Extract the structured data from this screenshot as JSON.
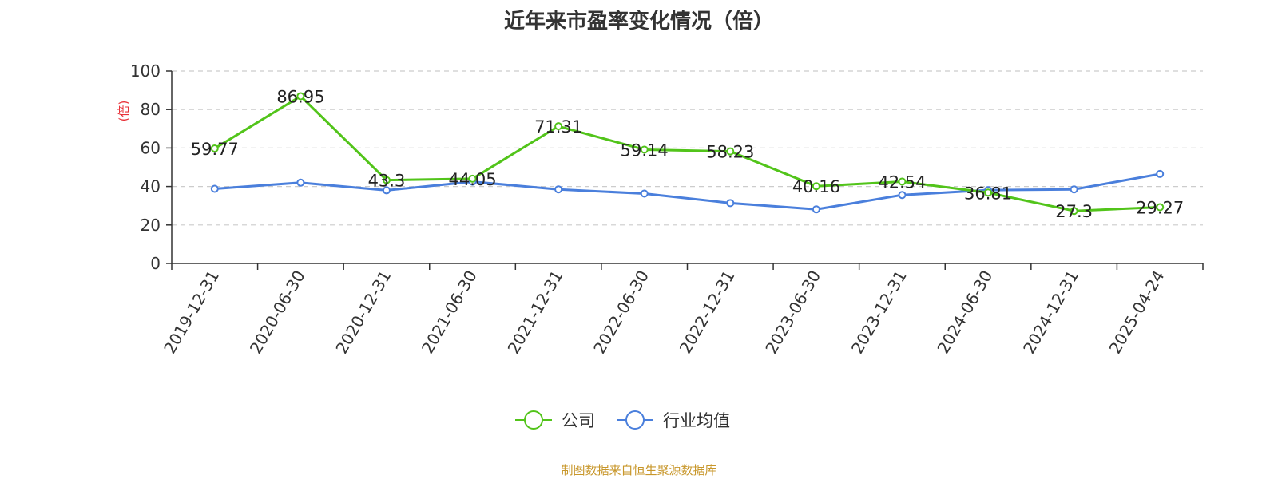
{
  "chart_data": {
    "type": "line",
    "title": "近年来市盈率变化情况（倍）",
    "ylabel": "(倍)",
    "xlabel": "",
    "ylim": [
      0,
      100
    ],
    "yticks": [
      0,
      20,
      40,
      60,
      80,
      100
    ],
    "grid": true,
    "legend_position": "bottom-center",
    "categories": [
      "2019-12-31",
      "2020-06-30",
      "2020-12-31",
      "2021-06-30",
      "2021-12-31",
      "2022-06-30",
      "2022-12-31",
      "2023-06-30",
      "2023-12-31",
      "2024-06-30",
      "2024-12-31",
      "2025-04-24"
    ],
    "series": [
      {
        "name": "公司",
        "color": "#52c41a",
        "values": [
          59.77,
          86.95,
          43.3,
          44.05,
          71.31,
          59.14,
          58.23,
          40.16,
          42.54,
          36.81,
          27.3,
          29.27
        ],
        "labels": [
          "59.77",
          "86.95",
          "43.3",
          "44.05",
          "71.31",
          "59.14",
          "58.23",
          "40.16",
          "42.54",
          "36.81",
          "27.3",
          "29.27"
        ]
      },
      {
        "name": "行业均值",
        "color": "#4a7fdc",
        "values": [
          38.8,
          42.0,
          38.0,
          42.5,
          38.5,
          36.3,
          31.4,
          28.1,
          35.6,
          38.1,
          38.5,
          46.5
        ]
      }
    ]
  },
  "source": "制图数据来自恒生聚源数据库",
  "colors": {
    "ylabel": "#e8333a",
    "axis": "#333333",
    "grid": "#cccccc",
    "source": "#c8972b"
  }
}
